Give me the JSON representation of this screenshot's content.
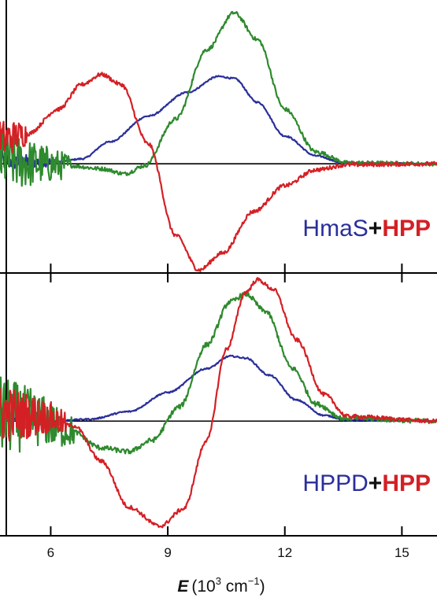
{
  "chart_data": {
    "type": "line",
    "x_axis": {
      "xlim": [
        4.7,
        15.9
      ],
      "ticks": [
        6,
        9,
        12,
        15
      ],
      "tick_labels": [
        "6",
        "9",
        "12",
        "15"
      ],
      "label_italic": "E",
      "label_rest": "(10",
      "label_sup1": "3",
      "label_mid": " cm",
      "label_sup2": "−1",
      "label_end": ")"
    },
    "panels": [
      {
        "ylim": [
          -1.1,
          1.65
        ],
        "baseline": 0,
        "tag": {
          "enzyme": "HmaS",
          "plus": "+",
          "ligand": "HPP"
        },
        "series": [
          {
            "color": "#2a2f9a",
            "noise": 0.015,
            "noise_below": 6.0,
            "points": [
              [
                4.7,
                0.03
              ],
              [
                5.5,
                0.02
              ],
              [
                6.2,
                0.02
              ],
              [
                6.8,
                0.05
              ],
              [
                7.5,
                0.22
              ],
              [
                8.5,
                0.48
              ],
              [
                9.5,
                0.72
              ],
              [
                10.3,
                0.88
              ],
              [
                10.7,
                0.86
              ],
              [
                11.3,
                0.62
              ],
              [
                12.0,
                0.28
              ],
              [
                12.8,
                0.08
              ],
              [
                13.5,
                0.01
              ],
              [
                15.9,
                0.0
              ]
            ]
          },
          {
            "color": "#2d8a2d",
            "noise": 0.04,
            "noise_below": 6.5,
            "points": [
              [
                4.7,
                0.05
              ],
              [
                5.5,
                0.0
              ],
              [
                6.5,
                -0.02
              ],
              [
                7.3,
                -0.05
              ],
              [
                7.9,
                -0.1
              ],
              [
                8.4,
                -0.02
              ],
              [
                9.2,
                0.45
              ],
              [
                10.0,
                1.15
              ],
              [
                10.7,
                1.52
              ],
              [
                11.3,
                1.25
              ],
              [
                12.0,
                0.55
              ],
              [
                12.8,
                0.12
              ],
              [
                13.6,
                0.01
              ],
              [
                15.9,
                0.0
              ]
            ]
          },
          {
            "color": "#d42025",
            "noise": 0.04,
            "noise_below": 5.4,
            "points": [
              [
                4.7,
                0.25
              ],
              [
                5.4,
                0.3
              ],
              [
                6.2,
                0.55
              ],
              [
                6.8,
                0.8
              ],
              [
                7.3,
                0.9
              ],
              [
                7.8,
                0.8
              ],
              [
                8.5,
                0.2
              ],
              [
                9.2,
                -0.72
              ],
              [
                9.8,
                -1.07
              ],
              [
                10.4,
                -0.9
              ],
              [
                11.2,
                -0.48
              ],
              [
                12.0,
                -0.22
              ],
              [
                12.8,
                -0.06
              ],
              [
                13.6,
                -0.01
              ],
              [
                15.9,
                0.0
              ]
            ]
          }
        ]
      },
      {
        "ylim": [
          -1.2,
          1.55
        ],
        "baseline": 0,
        "tag": {
          "enzyme": "HPPD",
          "plus": "+",
          "ligand": "HPP"
        },
        "series": [
          {
            "color": "#2a2f9a",
            "noise": 0.015,
            "noise_below": 6.0,
            "points": [
              [
                4.7,
                0.02
              ],
              [
                6.0,
                0.0
              ],
              [
                7.0,
                0.02
              ],
              [
                8.0,
                0.1
              ],
              [
                9.0,
                0.3
              ],
              [
                10.0,
                0.55
              ],
              [
                10.6,
                0.68
              ],
              [
                11.0,
                0.66
              ],
              [
                11.6,
                0.48
              ],
              [
                12.3,
                0.22
              ],
              [
                13.0,
                0.06
              ],
              [
                13.6,
                0.01
              ],
              [
                15.9,
                0.0
              ]
            ]
          },
          {
            "color": "#2d8a2d",
            "noise": 0.05,
            "noise_below": 6.6,
            "points": [
              [
                4.7,
                0.05
              ],
              [
                5.5,
                0.03
              ],
              [
                6.5,
                -0.1
              ],
              [
                7.3,
                -0.28
              ],
              [
                8.0,
                -0.32
              ],
              [
                8.6,
                -0.2
              ],
              [
                9.3,
                0.15
              ],
              [
                10.0,
                0.8
              ],
              [
                10.6,
                1.25
              ],
              [
                11.0,
                1.33
              ],
              [
                11.5,
                1.15
              ],
              [
                12.2,
                0.55
              ],
              [
                12.8,
                0.18
              ],
              [
                13.5,
                0.03
              ],
              [
                15.9,
                0.0
              ]
            ]
          },
          {
            "color": "#d42025",
            "noise": 0.04,
            "noise_below": 6.4,
            "points": [
              [
                4.7,
                0.08
              ],
              [
                5.8,
                0.05
              ],
              [
                6.6,
                -0.05
              ],
              [
                7.3,
                -0.42
              ],
              [
                8.0,
                -0.9
              ],
              [
                8.8,
                -1.1
              ],
              [
                9.4,
                -0.92
              ],
              [
                10.0,
                -0.2
              ],
              [
                10.5,
                0.75
              ],
              [
                11.0,
                1.35
              ],
              [
                11.3,
                1.48
              ],
              [
                11.7,
                1.38
              ],
              [
                12.3,
                0.85
              ],
              [
                13.0,
                0.28
              ],
              [
                13.6,
                0.05
              ],
              [
                15.9,
                0.0
              ]
            ]
          }
        ]
      }
    ]
  }
}
